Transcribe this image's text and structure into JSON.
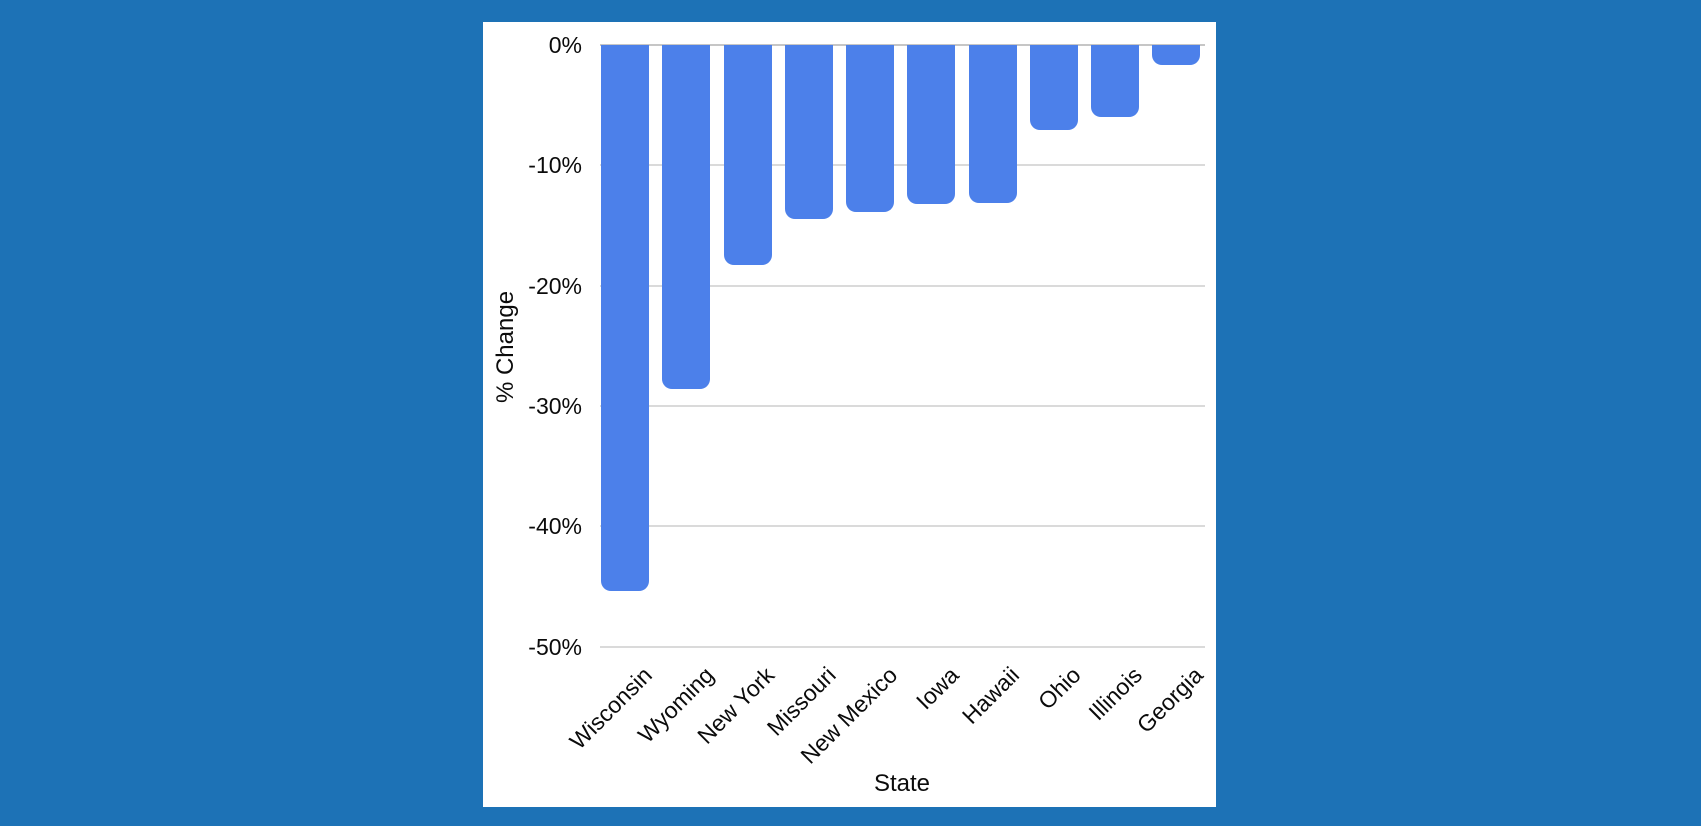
{
  "page": {
    "background_color": "#1D72B6",
    "card_color": "#FFFFFF"
  },
  "chart_data": {
    "type": "bar",
    "title": "",
    "categories": [
      "Wisconsin",
      "Wyoming",
      "New York",
      "Missouri",
      "New Mexico",
      "Iowa",
      "Hawaii",
      "Ohio",
      "Illinois",
      "Georgia"
    ],
    "values": [
      -45.4,
      -28.6,
      -18.3,
      -14.5,
      -13.9,
      -13.2,
      -13.1,
      -7.1,
      -6.0,
      -1.7
    ],
    "xlabel": "State",
    "ylabel": "% Change",
    "ylim": [
      -50,
      0
    ],
    "y_tick_values": [
      0,
      -10,
      -20,
      -30,
      -40,
      -50
    ],
    "y_tick_labels": [
      "0%",
      "-10%",
      "-20%",
      "-30%",
      "-40%",
      "-50%"
    ],
    "grid": true,
    "legend_position": "none",
    "x_label_rotation_deg": -45,
    "bar_color": "#4C80EA",
    "gridline_color": "#DADADA",
    "axis_line_color": "#C6C6C6",
    "text_color": "#0b0b0b"
  }
}
